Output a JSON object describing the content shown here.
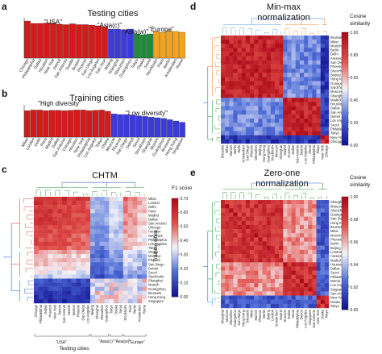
{
  "colors": {
    "usa": "#d41a1a",
    "asia_c": "#3b3bdc",
    "asia_w": "#1e8a3a",
    "europe": "#f2a51c",
    "high": "#d41a1a",
    "low": "#3b3bdc",
    "tree_green": "#3a9a48",
    "tree_red": "#e0473a",
    "tree_blue": "#3f6fd0",
    "tree_orange": "#f08a3a",
    "tree_lightblue": "#5ba6e0"
  },
  "chart_data": [
    {
      "id": "a",
      "type": "bar",
      "panel_letter": "a",
      "title": "Testing cities",
      "groups": [
        {
          "label": "\"USA\"",
          "color_key": "usa",
          "count": 13
        },
        {
          "label": "\"Asia(c)\"",
          "color_key": "asia_c",
          "count": 4
        },
        {
          "label": "\"Asia(w)\"",
          "color_key": "asia_w",
          "count": 3
        },
        {
          "label": "\"Europe\"",
          "color_key": "europe",
          "count": 5
        }
      ],
      "categories": [
        "Chicago",
        "Philadelphia",
        "Dallas",
        "Houston",
        "New York",
        "Detroit",
        "San Antonio",
        "Seattle",
        "Boston",
        "Phoenix",
        "San Diego",
        "Los Angeles",
        "San Jose",
        "Beijing",
        "Shanghai",
        "Shenzhen",
        "Guangzhou",
        "Tokyo",
        "Osaka",
        "Seoul",
        "Stockholm",
        "Paris",
        "Berlin",
        "Amsterdam",
        "Rome"
      ],
      "values": [
        0.92,
        0.86,
        0.86,
        0.87,
        0.87,
        0.84,
        0.83,
        0.85,
        0.83,
        0.83,
        0.82,
        0.8,
        0.78,
        0.72,
        0.72,
        0.7,
        0.72,
        0.6,
        0.58,
        0.6,
        0.66,
        0.64,
        0.68,
        0.66,
        0.64
      ],
      "ylim": [
        0,
        1
      ]
    },
    {
      "id": "b",
      "type": "bar",
      "panel_letter": "b",
      "title": "Training cities",
      "groups": [
        {
          "label": "\"High diversity\"",
          "color_key": "high",
          "count": 14
        },
        {
          "label": "\"Low diversity\"",
          "color_key": "low",
          "count": 12
        }
      ],
      "categories": [
        "Milan",
        "London",
        "Delhi",
        "Paris",
        "Madrid",
        "Dallas",
        "San Antonio",
        "Chicago",
        "Houston",
        "New York",
        "Philadelphia",
        "Los Angeles",
        "Tokyo",
        "Osaka",
        "Moscow",
        "Phoenix",
        "San Diego",
        "Detroit",
        "Seoul",
        "Stockholm",
        "Shanghai",
        "Munich",
        "Guangzhou",
        "Brussels",
        "Hong Kong",
        "Singapore"
      ],
      "values": [
        0.82,
        0.84,
        0.84,
        0.82,
        0.83,
        0.83,
        0.82,
        0.83,
        0.84,
        0.84,
        0.82,
        0.83,
        0.84,
        0.8,
        0.72,
        0.7,
        0.7,
        0.68,
        0.66,
        0.64,
        0.62,
        0.6,
        0.58,
        0.54,
        0.5,
        0.46
      ],
      "ylim": [
        0,
        1
      ]
    },
    {
      "id": "c",
      "type": "heatmap",
      "panel_letter": "c",
      "title": "CHTM",
      "xlabel": "Testing cities",
      "ylabel": "Training cities",
      "colorbar_title": "F1 score",
      "colorbar_ticks": [
        "0.70",
        "0.60",
        "0.50",
        "0.40",
        "0.30",
        "0.20",
        "0.10",
        "0.00"
      ],
      "vmin": 0,
      "vmax": 0.7,
      "x_groups": [
        {
          "label": "\"USA\"",
          "count": 12
        },
        {
          "label": "\"Asia(c)\"",
          "count": 4
        },
        {
          "label": "\"Asia(w)\"",
          "count": 3
        },
        {
          "label": "\"Europe\"",
          "count": 5
        }
      ],
      "x_labels": [
        "Chicago",
        "Philadelphia",
        "Dallas",
        "Houston",
        "New York",
        "Detroit",
        "San Antonio",
        "Seattle",
        "Boston",
        "Phoenix",
        "San Diego",
        "Los Angeles",
        "Beijing",
        "Shanghai",
        "Shenzhen",
        "Guangzhou",
        "Tokyo",
        "Osaka",
        "Seoul",
        "Stockholm",
        "Paris",
        "Berlin",
        "Amsterdam",
        "Rome"
      ],
      "y_labels": [
        "Milan",
        "London",
        "Delhi",
        "Paris",
        "Madrid",
        "Dallas",
        "San Antonio",
        "Chicago",
        "Houston",
        "New York",
        "Philadelphia",
        "Los Angeles",
        "Tokyo",
        "Osaka",
        "Moscow",
        "Phoenix",
        "San Diego",
        "Detroit",
        "Seoul",
        "Stockholm",
        "Shanghai",
        "Munich",
        "Guangzhou",
        "Brussels",
        "Hong Kong",
        "Singapore"
      ],
      "row_levels": [
        0.62,
        0.6,
        0.58,
        0.6,
        0.58,
        0.6,
        0.58,
        0.56,
        0.56,
        0.55,
        0.54,
        0.55,
        0.52,
        0.45,
        0.4,
        0.42,
        0.4,
        0.38,
        0.35,
        0.3,
        0.12,
        0.1,
        0.1,
        0.08,
        0.06,
        0.05
      ],
      "col_factor": [
        1.0,
        1.0,
        1.0,
        0.98,
        0.98,
        0.97,
        0.98,
        0.96,
        0.95,
        0.94,
        0.92,
        0.9,
        0.45,
        0.42,
        0.4,
        0.44,
        0.55,
        0.5,
        0.52,
        0.8,
        0.78,
        0.75,
        0.7,
        0.66
      ]
    },
    {
      "id": "d",
      "type": "heatmap",
      "panel_letter": "d",
      "title": "Min-max normalization",
      "colorbar_title": "Cosine similarity",
      "colorbar_ticks": [
        "1.00",
        "0.80",
        "0.60",
        "0.40",
        "0.20",
        "0.00"
      ],
      "vmin": 0,
      "vmax": 1,
      "labels": [
        "Brussels",
        "Milan",
        "Munich",
        "Berlin",
        "Delhi",
        "Amsterdam",
        "San Diego",
        "Phoenix",
        "Shenzhen",
        "Beijing",
        "Hong Kong",
        "Guangzhou",
        "Stockholm",
        "Moscow",
        "Shanghai",
        "Madrid",
        "Houston",
        "Dallas",
        "San Antonio",
        "Detroit",
        "Los Angeles",
        "Seoul",
        "Philadelphia",
        "Tokyo",
        "New York",
        "Chicago"
      ],
      "clusters": [
        [
          0,
          15
        ],
        [
          15,
          24
        ],
        [
          24,
          26
        ]
      ],
      "within": 0.9,
      "between": 0.3,
      "vs_last": 0.1
    },
    {
      "id": "e",
      "type": "heatmap",
      "panel_letter": "e",
      "title": "Zero-one normalization",
      "colorbar_title": "Cosine similarity",
      "colorbar_ticks": [
        "1.00",
        "0.98",
        "0.96",
        "0.94",
        "0.92",
        "0.90"
      ],
      "vmin": 0.9,
      "vmax": 1.0,
      "labels": [
        "Shanghai",
        "Moscow",
        "Shenzhen",
        "Guangzhou",
        "San Diego",
        "Hong Kong",
        "Brussels",
        "Milan",
        "Munich",
        "Phoenix",
        "Berlin",
        "Beijing",
        "London",
        "Amsterdam",
        "Madrid",
        "Houston",
        "Dallas",
        "Seoul",
        "Philadelphia",
        "Detroit",
        "Los Angeles",
        "Singapore",
        "San Antonio",
        "New York",
        "Osaka",
        "Tokyo"
      ],
      "clusters": [
        [
          0,
          15
        ],
        [
          15,
          23
        ],
        [
          23,
          26
        ]
      ],
      "within": 0.985,
      "between": 0.965,
      "vs_last": 0.92
    }
  ]
}
